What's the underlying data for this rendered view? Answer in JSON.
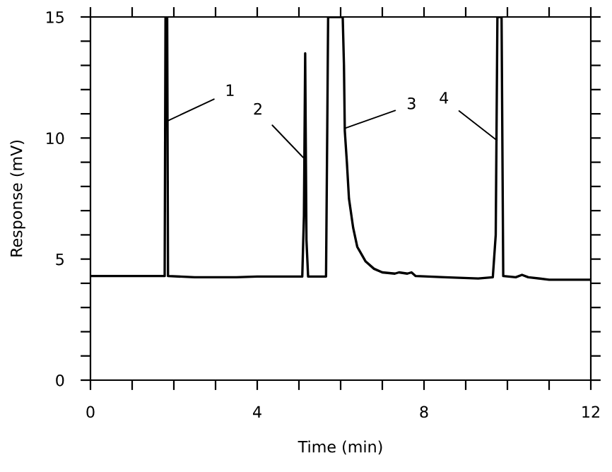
{
  "chart_data": {
    "type": "line",
    "xlabel": "Time (min)",
    "ylabel": "Response (mV)",
    "x": [
      0,
      0.5,
      1.0,
      1.5,
      1.78,
      1.8,
      1.84,
      1.86,
      2.5,
      3.0,
      3.5,
      4.0,
      4.5,
      5.08,
      5.12,
      5.15,
      5.18,
      5.22,
      5.65,
      5.68,
      5.7,
      6.05,
      6.08,
      6.1,
      6.15,
      6.2,
      6.3,
      6.4,
      6.6,
      6.8,
      7.0,
      7.3,
      7.4,
      7.6,
      7.7,
      7.8,
      8.5,
      9.3,
      9.65,
      9.72,
      9.76,
      9.86,
      9.9,
      10.2,
      10.35,
      10.5,
      11.0,
      12.0
    ],
    "series": [
      {
        "color": "#000000",
        "values": [
          4.3,
          4.3,
          4.3,
          4.3,
          4.3,
          15,
          15,
          4.3,
          4.25,
          4.25,
          4.25,
          4.28,
          4.28,
          4.28,
          6.8,
          13.5,
          5.8,
          4.28,
          4.28,
          10.5,
          15,
          15,
          13,
          10.3,
          9,
          7.5,
          6.3,
          5.5,
          4.9,
          4.6,
          4.45,
          4.4,
          4.45,
          4.4,
          4.45,
          4.3,
          4.25,
          4.2,
          4.25,
          6,
          15,
          15,
          4.3,
          4.25,
          4.35,
          4.25,
          4.15,
          4.15
        ]
      }
    ],
    "xlim": [
      0,
      12
    ],
    "ylim": [
      0,
      15
    ],
    "xticks": [
      0,
      {
        "value": 1,
        "label": null
      },
      {
        "value": 2,
        "label": null
      },
      {
        "value": 3,
        "label": null
      },
      4,
      {
        "value": 5,
        "label": null
      },
      {
        "value": 6,
        "label": null
      },
      {
        "value": 7,
        "label": null
      },
      8,
      {
        "value": 9,
        "label": null
      },
      {
        "value": 10,
        "label": null
      },
      {
        "value": 11,
        "label": null
      },
      12
    ],
    "yticks": [
      0,
      {
        "value": 1,
        "label": null
      },
      {
        "value": 2,
        "label": null
      },
      {
        "value": 3,
        "label": null
      },
      {
        "value": 4,
        "label": null
      },
      5,
      {
        "value": 6,
        "label": null
      },
      {
        "value": 7,
        "label": null
      },
      {
        "value": 8,
        "label": null
      },
      {
        "value": 9,
        "label": null
      },
      10,
      {
        "value": 11,
        "label": null
      },
      {
        "value": 12,
        "label": null
      },
      {
        "value": 13,
        "label": null
      },
      {
        "value": 14,
        "label": null
      },
      15
    ],
    "annotations": [
      {
        "text": "1",
        "x": 1.84,
        "y": 10.7
      },
      {
        "text": "2",
        "x": 5.1,
        "y": 9.2
      },
      {
        "text": "3",
        "x": 6.1,
        "y": 10.4
      },
      {
        "text": "4",
        "x": 9.75,
        "y": 9.9
      }
    ],
    "grid": false,
    "legend": false,
    "marker": "none",
    "line_style": "solid"
  }
}
